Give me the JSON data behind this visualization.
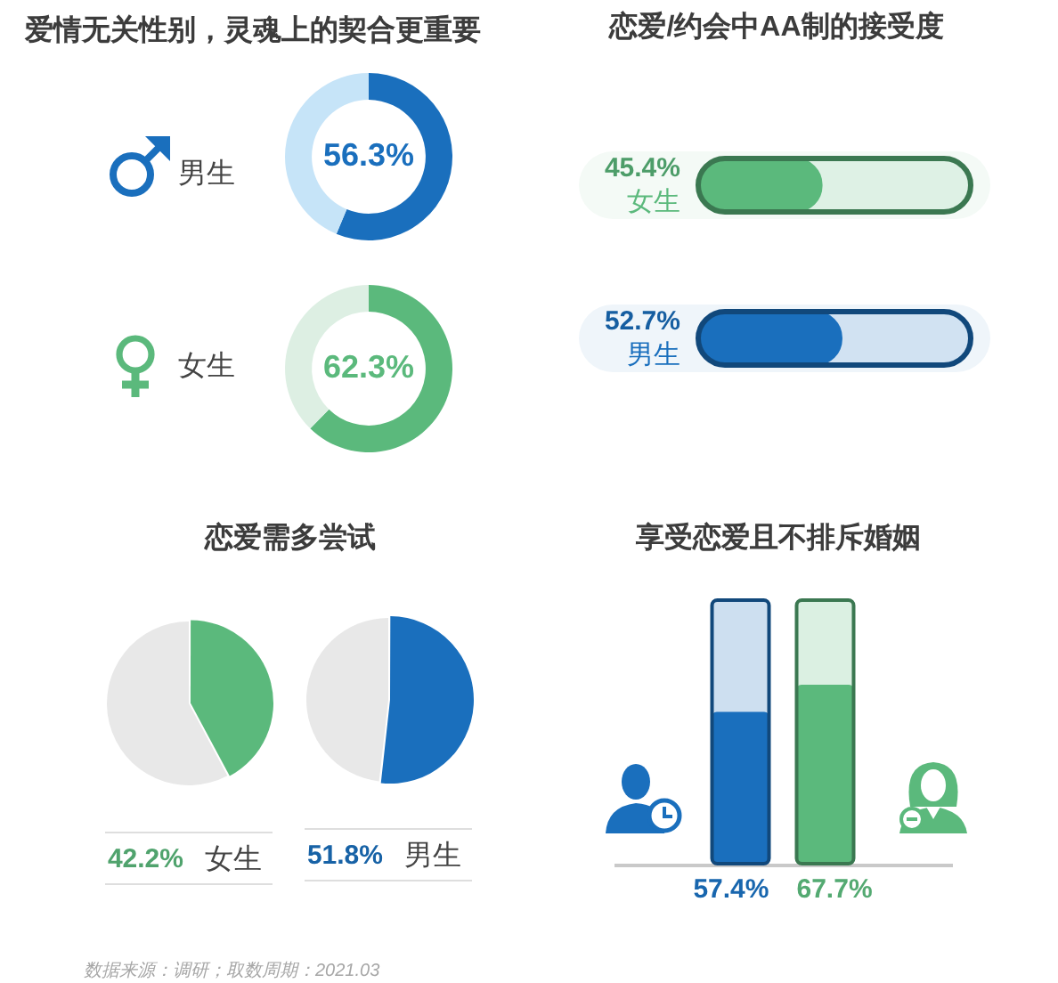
{
  "chart_data": [
    {
      "type": "donut",
      "title": "爱情无关性别，灵魂上的契合更重要",
      "categories": [
        "男生",
        null
      ],
      "values": [
        56.3,
        43.7
      ],
      "colors": [
        "#1a6fbd",
        "#c6e4f8"
      ],
      "value_labels": [
        "56.3%",
        null
      ]
    },
    {
      "type": "donut",
      "categories": [
        "女生",
        null
      ],
      "values": [
        62.3,
        37.7
      ],
      "colors": [
        "#5bb97c",
        "#ddefe3"
      ],
      "value_labels": [
        "62.3%",
        null
      ]
    },
    {
      "type": "bar",
      "orientation": "horizontal",
      "title": "恋爱/约会中AA制的接受度",
      "categories": [
        "女生",
        "男生"
      ],
      "values": [
        45.4,
        52.7
      ],
      "colors": [
        "#5bb97c",
        "#1a6fbd"
      ],
      "xlim": [
        0,
        100
      ],
      "value_labels": [
        "45.4%",
        "52.7%"
      ]
    },
    {
      "type": "pie",
      "title": "恋爱需多尝试",
      "categories": [
        "女生",
        null
      ],
      "values": [
        42.2,
        57.8
      ],
      "colors": [
        "#5bb97c",
        "#e8e8e8"
      ],
      "value_labels": [
        "42.2%",
        null
      ]
    },
    {
      "type": "pie",
      "categories": [
        "男生",
        null
      ],
      "values": [
        51.8,
        48.2
      ],
      "colors": [
        "#1a6fbd",
        "#e8e8e8"
      ],
      "value_labels": [
        "51.8%",
        null
      ]
    },
    {
      "type": "bar",
      "title": "享受恋爱且不排斥婚姻",
      "categories": [
        null,
        null
      ],
      "values": [
        57.4,
        67.7
      ],
      "colors": [
        "#1a6fbd",
        "#5bb97c"
      ],
      "ylim": [
        0,
        100
      ],
      "value_labels": [
        "57.4%",
        "67.7%"
      ],
      "annotations": [
        "数据来源：调研；取数周期：2021.03"
      ]
    }
  ]
}
